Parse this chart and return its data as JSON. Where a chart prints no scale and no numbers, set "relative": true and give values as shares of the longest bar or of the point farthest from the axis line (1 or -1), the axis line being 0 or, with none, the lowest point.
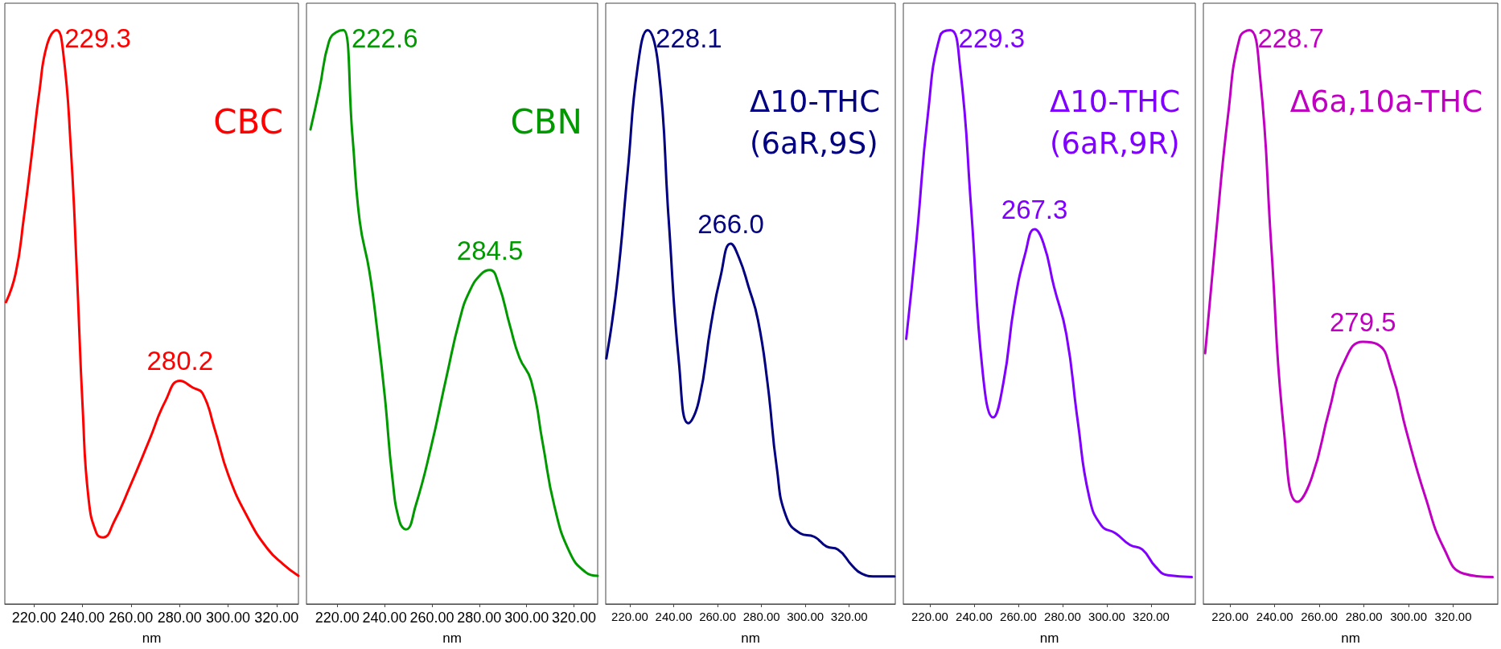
{
  "chart_data": [
    {
      "type": "line",
      "title": "CBC",
      "xlabel": "nm",
      "color": "#ff0000",
      "relative": true,
      "marker": "none",
      "tick_labels": "x",
      "xlim": [
        208,
        329
      ],
      "xticks": [
        {
          "value": 220,
          "label": "220.00"
        },
        {
          "value": 240,
          "label": "240.00"
        },
        {
          "value": 260,
          "label": "260.00"
        },
        {
          "value": 280,
          "label": "280.00"
        },
        {
          "value": 300,
          "label": "300.00"
        },
        {
          "value": 320,
          "label": "320.00"
        }
      ],
      "x": [
        208.5,
        212.5,
        215.8,
        219.0,
        222.3,
        225.5,
        229.3,
        232.0,
        235.2,
        237.7,
        240.1,
        242.5,
        245.8,
        248.5,
        253.1,
        259.5,
        267.6,
        274.1,
        280.2,
        285.5,
        289.5,
        294.4,
        300.1,
        308.2,
        316.3,
        322.8,
        329
      ],
      "values": [
        0.526,
        0.577,
        0.672,
        0.78,
        0.895,
        0.976,
        1.0,
        0.963,
        0.794,
        0.577,
        0.34,
        0.184,
        0.123,
        0.116,
        0.144,
        0.204,
        0.286,
        0.353,
        0.389,
        0.377,
        0.367,
        0.306,
        0.225,
        0.15,
        0.096,
        0.069,
        0.049
      ],
      "annotations": [
        {
          "text": "229.3",
          "x": 229.3,
          "y": 1.0
        },
        {
          "text": "280.2",
          "x": 280.2,
          "y": 0.389
        }
      ]
    },
    {
      "type": "line",
      "title": "CBN",
      "xlabel": "nm",
      "color": "#009900",
      "relative": true,
      "marker": "none",
      "tick_labels": "x",
      "xlim": [
        207,
        330
      ],
      "xticks": [
        {
          "value": 220,
          "label": "220.00"
        },
        {
          "value": 240,
          "label": "240.00"
        },
        {
          "value": 260,
          "label": "260.00"
        },
        {
          "value": 280,
          "label": "280.00"
        },
        {
          "value": 300,
          "label": "300.00"
        },
        {
          "value": 320,
          "label": "320.00"
        }
      ],
      "x": [
        208.7,
        212.5,
        216.5,
        219.8,
        222.6,
        226.4,
        229.5,
        233.6,
        236.9,
        240.1,
        243.3,
        246.3,
        249.0,
        253.1,
        259.6,
        266.1,
        271.8,
        275.9,
        280.8,
        284.5,
        288.1,
        293.0,
        297.0,
        301.9,
        306.8,
        311.7,
        318.2,
        324.7,
        330
      ],
      "values": [
        0.827,
        0.898,
        0.98,
        0.997,
        1.0,
        0.817,
        0.667,
        0.579,
        0.477,
        0.361,
        0.219,
        0.144,
        0.13,
        0.171,
        0.273,
        0.395,
        0.497,
        0.545,
        0.575,
        0.582,
        0.558,
        0.484,
        0.429,
        0.389,
        0.28,
        0.171,
        0.09,
        0.056,
        0.049
      ],
      "annotations": [
        {
          "text": "222.6",
          "x": 222.6,
          "y": 1.0
        },
        {
          "text": "284.5",
          "x": 284.5,
          "y": 0.582
        }
      ]
    },
    {
      "type": "line",
      "title": "Δ10-THC\n(6aR,9S)",
      "xlabel": "nm",
      "color": "#000080",
      "relative": true,
      "marker": "none",
      "tick_labels": "x",
      "xlim": [
        209,
        341
      ],
      "xticks": [
        {
          "value": 220,
          "label": "220.00"
        },
        {
          "value": 240,
          "label": "240.00"
        },
        {
          "value": 260,
          "label": "260.00"
        },
        {
          "value": 280,
          "label": "280.00"
        },
        {
          "value": 300,
          "label": "300.00"
        },
        {
          "value": 320,
          "label": "320.00"
        }
      ],
      "x": [
        209.3,
        214.0,
        219.0,
        223.6,
        228.1,
        233.0,
        237.7,
        242.4,
        246.7,
        251.4,
        257.0,
        261.3,
        266.0,
        269.8,
        274.1,
        278.4,
        282.7,
        287.0,
        291.2,
        297.7,
        304.1,
        309.7,
        314.8,
        321.3,
        325.6,
        332.0,
        340.6
      ],
      "values": [
        0.428,
        0.553,
        0.753,
        0.937,
        1.0,
        0.937,
        0.67,
        0.42,
        0.315,
        0.353,
        0.487,
        0.57,
        0.628,
        0.603,
        0.553,
        0.495,
        0.387,
        0.237,
        0.153,
        0.123,
        0.117,
        0.1,
        0.095,
        0.067,
        0.053,
        0.048,
        0.048
      ],
      "annotations": [
        {
          "text": "228.1",
          "x": 228.1,
          "y": 1.0
        },
        {
          "text": "266.0",
          "x": 266.0,
          "y": 0.628
        }
      ]
    },
    {
      "type": "line",
      "title": "Δ10-THC\n(6aR,9R)",
      "xlabel": "nm",
      "color": "#7f00ff",
      "relative": true,
      "marker": "none",
      "tick_labels": "x",
      "xlim": [
        208,
        340
      ],
      "xticks": [
        {
          "value": 220,
          "label": "220.00"
        },
        {
          "value": 240,
          "label": "240.00"
        },
        {
          "value": 260,
          "label": "260.00"
        },
        {
          "value": 280,
          "label": "280.00"
        },
        {
          "value": 300,
          "label": "300.00"
        },
        {
          "value": 320,
          "label": "320.00"
        }
      ],
      "x": [
        209.3,
        214.0,
        219.1,
        224.6,
        229.3,
        233.6,
        238.7,
        243.9,
        248.6,
        253.3,
        258.1,
        263.2,
        267.3,
        271.4,
        276.1,
        281.7,
        286.8,
        292.0,
        297.5,
        304.0,
        310.4,
        316.0,
        322.0,
        327.6,
        338.4
      ],
      "values": [
        0.462,
        0.637,
        0.853,
        0.99,
        1.0,
        0.937,
        0.687,
        0.403,
        0.325,
        0.387,
        0.52,
        0.612,
        0.653,
        0.628,
        0.553,
        0.47,
        0.32,
        0.187,
        0.137,
        0.123,
        0.103,
        0.095,
        0.065,
        0.05,
        0.047
      ],
      "annotations": [
        {
          "text": "229.3",
          "x": 229.3,
          "y": 1.0
        },
        {
          "text": "267.3",
          "x": 267.3,
          "y": 0.653
        }
      ]
    },
    {
      "type": "line",
      "title": "Δ6a,10a-THC",
      "xlabel": "nm",
      "color": "#c000c0",
      "relative": true,
      "marker": "none",
      "tick_labels": "x",
      "xlim": [
        208,
        340
      ],
      "xticks": [
        {
          "value": 220,
          "label": "220.00"
        },
        {
          "value": 240,
          "label": "240.00"
        },
        {
          "value": 260,
          "label": "260.00"
        },
        {
          "value": 280,
          "label": "280.00"
        },
        {
          "value": 300,
          "label": "300.00"
        },
        {
          "value": 320,
          "label": "320.00"
        }
      ],
      "x": [
        208.8,
        213.5,
        219.1,
        224.3,
        228.7,
        233.4,
        238.5,
        244.1,
        250.2,
        256.6,
        264.4,
        270.9,
        279.5,
        285.9,
        292.4,
        298.9,
        307.5,
        316.1,
        324.7,
        337.7
      ],
      "values": [
        0.437,
        0.637,
        0.853,
        0.987,
        1.0,
        0.92,
        0.62,
        0.303,
        0.178,
        0.22,
        0.337,
        0.42,
        0.457,
        0.453,
        0.403,
        0.303,
        0.187,
        0.095,
        0.053,
        0.047
      ],
      "annotations": [
        {
          "text": "228.7",
          "x": 228.7,
          "y": 1.0
        },
        {
          "text": "279.5",
          "x": 279.5,
          "y": 0.457
        }
      ]
    }
  ]
}
